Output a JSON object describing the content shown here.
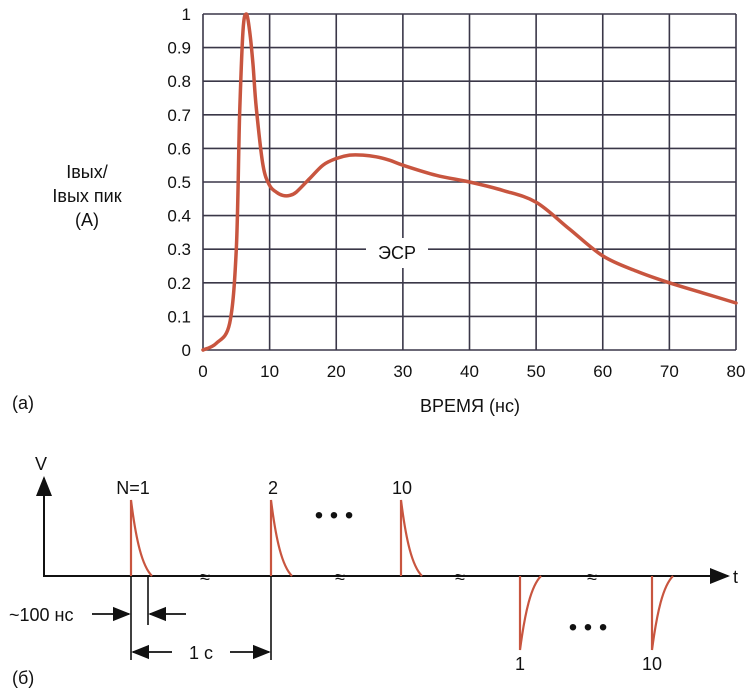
{
  "chart_data": [
    {
      "type": "line",
      "panel_label": "(a)",
      "xlabel": "ВРЕМЯ (нс)",
      "ylabel_lines": [
        "Iвых/",
        "Iвых пик",
        "(A)"
      ],
      "xlim": [
        0,
        80
      ],
      "ylim": [
        0,
        1
      ],
      "xticks": [
        "0",
        "10",
        "20",
        "30",
        "40",
        "50",
        "60",
        "70",
        "80"
      ],
      "yticks": [
        "0",
        "0.1",
        "0.2",
        "0.3",
        "0.4",
        "0.5",
        "0.6",
        "0.7",
        "0.8",
        "0.9",
        "1"
      ],
      "grid": true,
      "annotation": "ЭСР",
      "line_color": "#c8553f",
      "series": [
        {
          "x": [
            0,
            2,
            4,
            5,
            5.5,
            6,
            6.5,
            7,
            7.5,
            8,
            9,
            10,
            11,
            12,
            13,
            14,
            16,
            18,
            20,
            22,
            24,
            26,
            28,
            30,
            35,
            40,
            45,
            50,
            55,
            60,
            65,
            70,
            75,
            80
          ],
          "y": [
            0,
            0.02,
            0.08,
            0.3,
            0.7,
            0.95,
            1.0,
            0.95,
            0.85,
            0.72,
            0.55,
            0.49,
            0.47,
            0.46,
            0.46,
            0.47,
            0.51,
            0.55,
            0.57,
            0.58,
            0.58,
            0.575,
            0.565,
            0.55,
            0.52,
            0.5,
            0.475,
            0.44,
            0.36,
            0.28,
            0.235,
            0.2,
            0.17,
            0.14
          ]
        }
      ]
    },
    {
      "type": "diagram",
      "panel_label": "(б)",
      "y_axis_label": "V",
      "x_axis_label": "t",
      "positive_pulse_labels": [
        "N=1",
        "2",
        "10"
      ],
      "negative_pulse_labels": [
        "1",
        "10"
      ],
      "ellipsis": "• • •",
      "break_mark": "≈",
      "width_label": "~100 нс",
      "period_label": "1 с",
      "pulse_color": "#c8553f"
    }
  ]
}
